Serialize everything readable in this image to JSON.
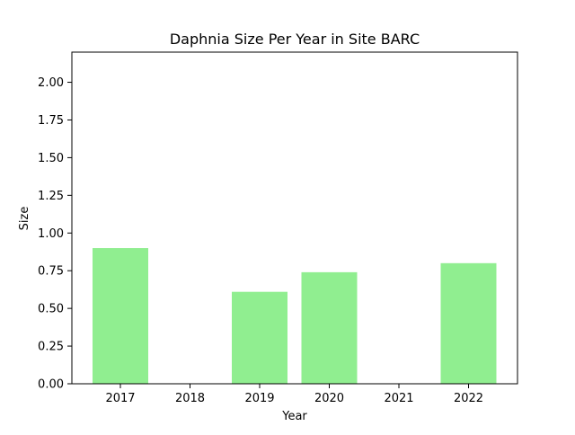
{
  "chart_data": {
    "type": "bar",
    "title": "Daphnia Size Per Year in Site BARC",
    "xlabel": "Year",
    "ylabel": "Size",
    "categories": [
      "2017",
      "2018",
      "2019",
      "2020",
      "2021",
      "2022"
    ],
    "values": [
      0.9,
      null,
      0.61,
      0.74,
      null,
      0.8
    ],
    "ylim": [
      0,
      2.2
    ],
    "yticks": [
      "0.00",
      "0.25",
      "0.50",
      "0.75",
      "1.00",
      "1.25",
      "1.50",
      "1.75",
      "2.00"
    ],
    "grid": false,
    "legend": "none",
    "bar_color": "#90ee90"
  }
}
